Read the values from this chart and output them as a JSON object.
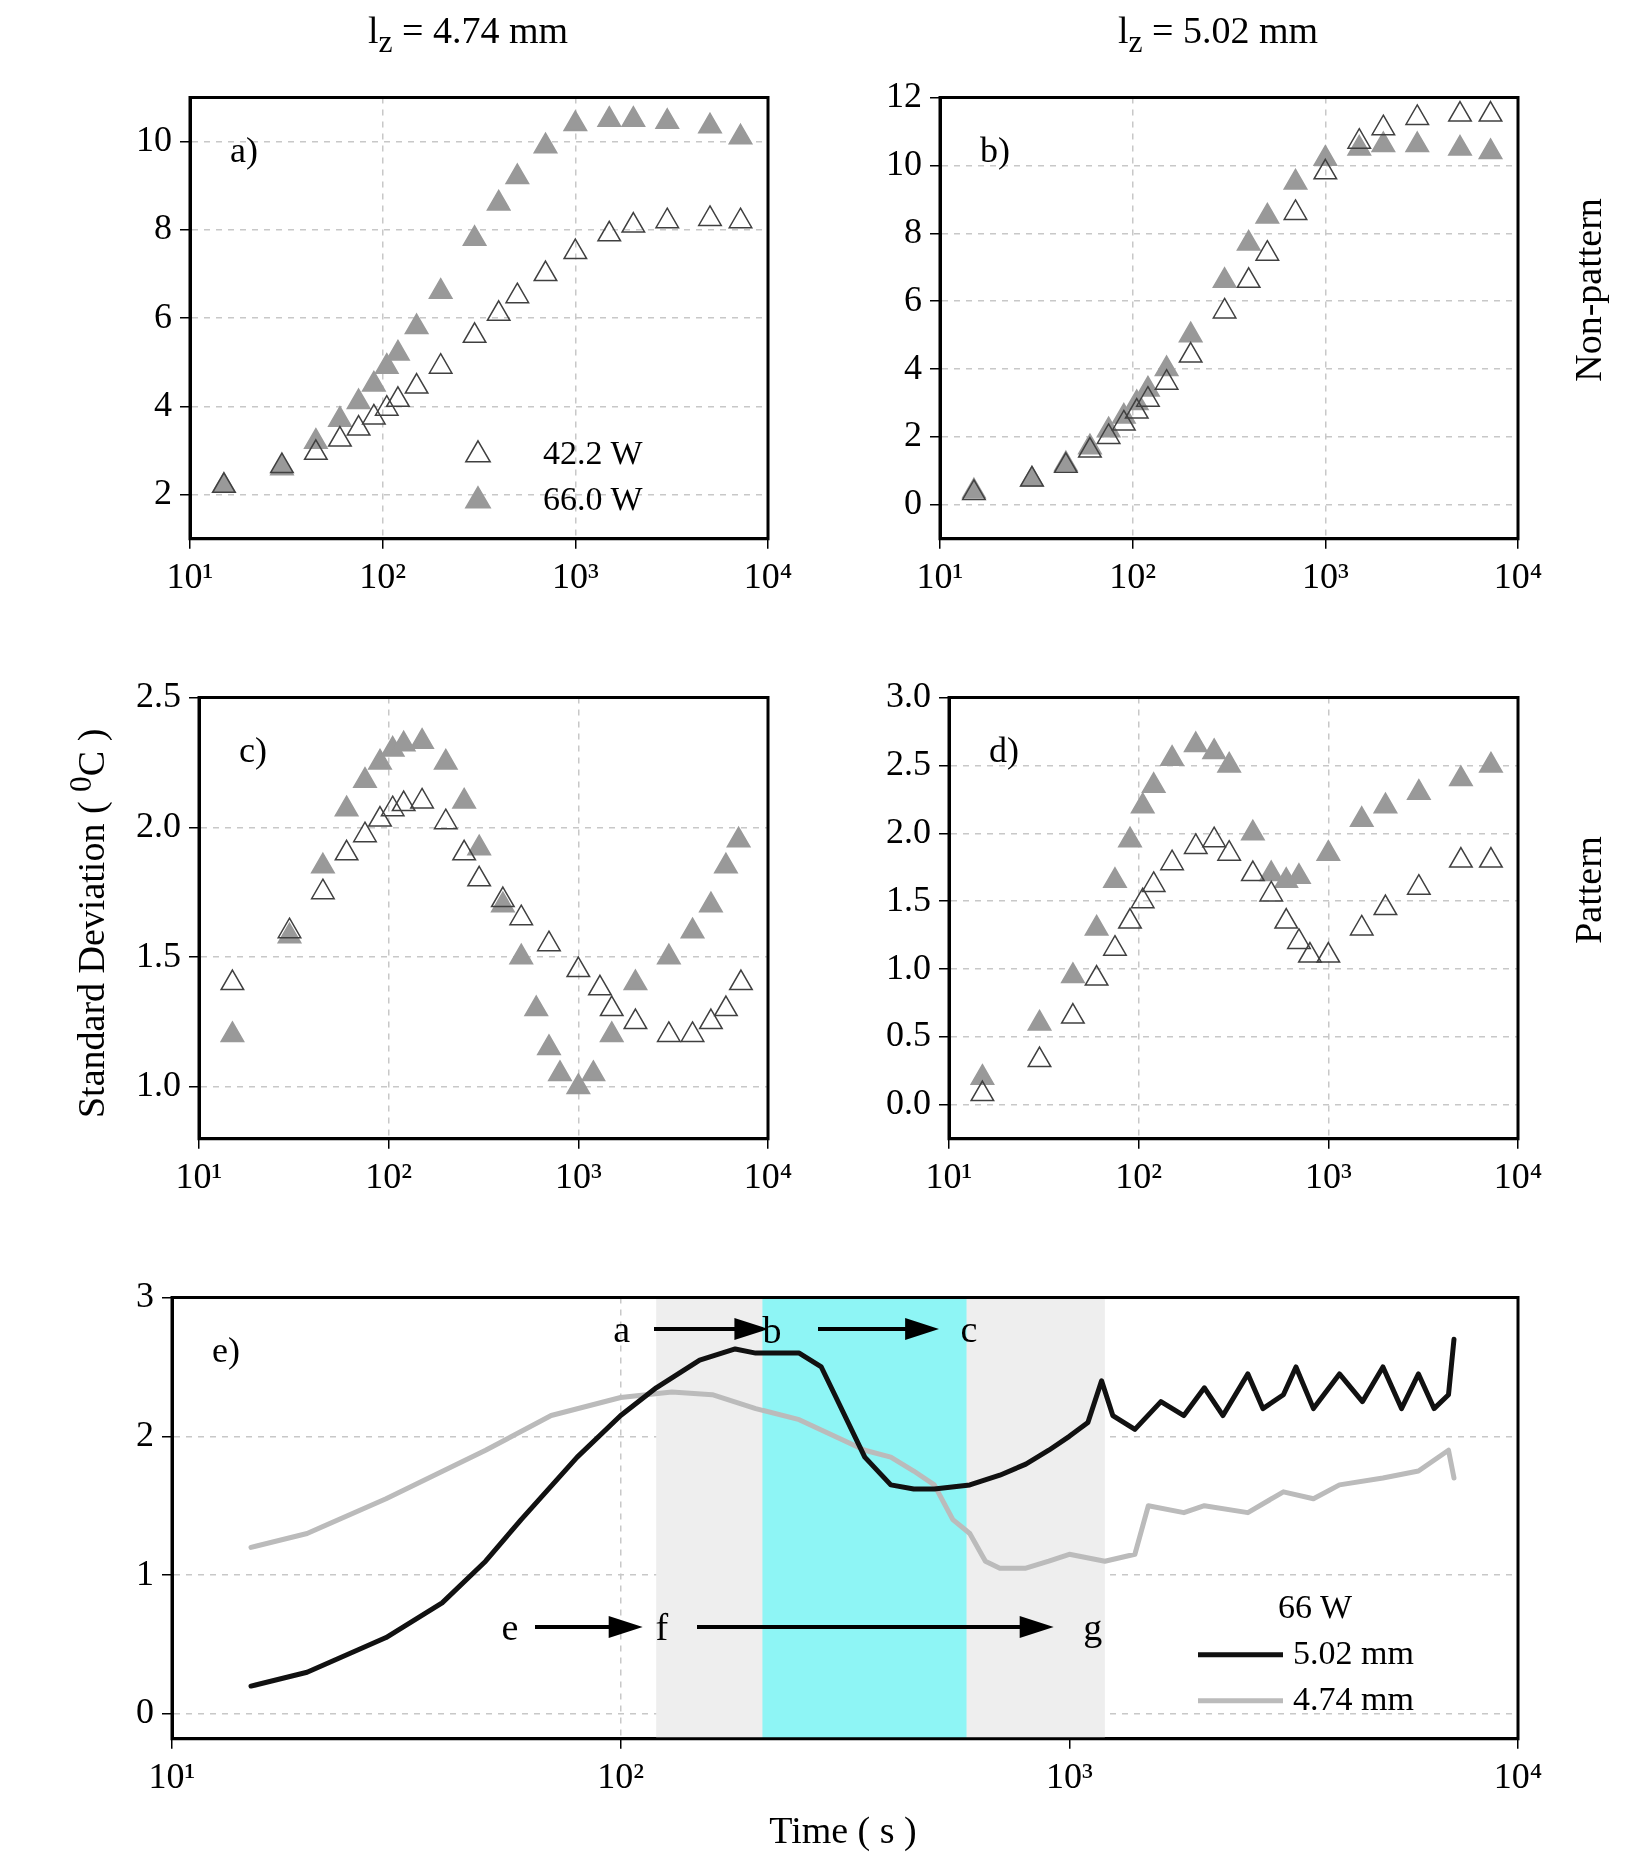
{
  "chart_data": [
    {
      "type": "scatter",
      "title": "l$_{z}$ = 4.74 mm",
      "log": "x",
      "grid": true,
      "marker": "triangle",
      "legend": "bottom right",
      "xlim": [
        10,
        10000
      ],
      "xticks": [
        {
          "value": 10,
          "label": "10¹"
        },
        {
          "value": 100,
          "label": "10²"
        },
        {
          "value": 1000,
          "label": "10³"
        },
        {
          "value": 10000,
          "label": "10⁴"
        }
      ],
      "ylim": [
        1,
        11
      ],
      "yticks": [
        2,
        4,
        6,
        8,
        10
      ],
      "annotations": [
        "a)"
      ],
      "series": [
        {
          "name": "42.2 W",
          "color": "#404040",
          "x": [
            15,
            30,
            45,
            60,
            75,
            90,
            105,
            120,
            150,
            200,
            300,
            400,
            500,
            700,
            1000,
            1500,
            2000,
            3000,
            5000,
            7200
          ],
          "values": [
            2.2,
            2.65,
            2.95,
            3.25,
            3.5,
            3.75,
            3.95,
            4.15,
            4.45,
            4.9,
            5.6,
            6.1,
            6.5,
            7.0,
            7.5,
            7.9,
            8.1,
            8.2,
            8.25,
            8.2
          ]
        },
        {
          "name": "66.0 W",
          "color": "#999999",
          "x": [
            15,
            30,
            45,
            60,
            75,
            90,
            105,
            120,
            150,
            200,
            300,
            400,
            500,
            700,
            1000,
            1500,
            2000,
            3000,
            5000,
            7200
          ],
          "values": [
            2.2,
            2.6,
            3.2,
            3.7,
            4.1,
            4.5,
            4.9,
            5.2,
            5.8,
            6.6,
            7.8,
            8.6,
            9.2,
            9.9,
            10.4,
            10.5,
            10.5,
            10.45,
            10.35,
            10.1
          ]
        }
      ]
    },
    {
      "type": "scatter",
      "title": "l$_{z}$ = 5.02 mm",
      "y2label": "Non-pattern",
      "log": "x",
      "grid": true,
      "marker": "triangle",
      "xlim": [
        10,
        10000
      ],
      "xticks": [
        {
          "value": 10,
          "label": "10¹"
        },
        {
          "value": 100,
          "label": "10²"
        },
        {
          "value": 1000,
          "label": "10³"
        },
        {
          "value": 10000,
          "label": "10⁴"
        }
      ],
      "ylim": [
        -1,
        12
      ],
      "yticks": [
        0,
        2,
        4,
        6,
        8,
        10,
        12
      ],
      "annotations": [
        "b)"
      ],
      "series": [
        {
          "color": "#404040",
          "x": [
            15,
            30,
            45,
            60,
            75,
            90,
            105,
            120,
            150,
            200,
            300,
            400,
            500,
            700,
            1000,
            1500,
            2000,
            3000,
            5000,
            7200
          ],
          "values": [
            0.35,
            0.75,
            1.15,
            1.6,
            2.0,
            2.4,
            2.75,
            3.1,
            3.6,
            4.4,
            5.7,
            6.6,
            7.4,
            8.6,
            9.8,
            10.7,
            11.1,
            11.4,
            11.5,
            11.5
          ]
        },
        {
          "color": "#999999",
          "x": [
            15,
            30,
            45,
            60,
            75,
            90,
            105,
            120,
            150,
            200,
            300,
            400,
            500,
            700,
            1000,
            1500,
            2000,
            3000,
            5000,
            7200
          ],
          "values": [
            0.4,
            0.75,
            1.2,
            1.7,
            2.2,
            2.6,
            3.0,
            3.4,
            4.0,
            5.0,
            6.6,
            7.7,
            8.5,
            9.5,
            10.2,
            10.5,
            10.6,
            10.6,
            10.5,
            10.4
          ]
        }
      ]
    },
    {
      "type": "scatter",
      "ylabel": "Standard Deviation ( $^{0}$C )",
      "log": "x",
      "grid": true,
      "marker": "triangle",
      "xlim": [
        10,
        10000
      ],
      "xticks": [
        {
          "value": 10,
          "label": "10¹"
        },
        {
          "value": 100,
          "label": "10²"
        },
        {
          "value": 1000,
          "label": "10³"
        },
        {
          "value": 10000,
          "label": "10⁴"
        }
      ],
      "ylim": [
        0.8,
        2.5
      ],
      "yticks": [
        {
          "value": 1,
          "label": "1.0"
        },
        1.5,
        {
          "value": 2,
          "label": "2.0"
        },
        2.5
      ],
      "annotations": [
        "c)"
      ],
      "series": [
        {
          "color": "#404040",
          "x": [
            15,
            30,
            45,
            60,
            75,
            90,
            105,
            120,
            150,
            200,
            250,
            300,
            400,
            500,
            700,
            1000,
            1300,
            1500,
            2000,
            3000,
            4000,
            5000,
            6000,
            7200
          ],
          "values": [
            1.4,
            1.6,
            1.75,
            1.9,
            1.97,
            2.03,
            2.07,
            2.09,
            2.1,
            2.02,
            1.9,
            1.8,
            1.72,
            1.65,
            1.55,
            1.45,
            1.38,
            1.3,
            1.25,
            1.2,
            1.2,
            1.25,
            1.3,
            1.4
          ]
        },
        {
          "color": "#999999",
          "x": [
            15,
            30,
            45,
            60,
            75,
            90,
            105,
            120,
            150,
            200,
            250,
            300,
            400,
            500,
            600,
            700,
            800,
            1000,
            1200,
            1500,
            2000,
            3000,
            4000,
            5000,
            6000,
            7000
          ],
          "values": [
            1.2,
            1.58,
            1.85,
            2.07,
            2.18,
            2.25,
            2.3,
            2.32,
            2.33,
            2.25,
            2.1,
            1.92,
            1.7,
            1.5,
            1.3,
            1.15,
            1.05,
            1.0,
            1.05,
            1.2,
            1.4,
            1.5,
            1.6,
            1.7,
            1.85,
            1.95
          ]
        }
      ]
    },
    {
      "type": "scatter",
      "y2label": "Pattern",
      "log": "x",
      "grid": true,
      "marker": "triangle",
      "xlim": [
        10,
        10000
      ],
      "xticks": [
        {
          "value": 10,
          "label": "10¹"
        },
        {
          "value": 100,
          "label": "10²"
        },
        {
          "value": 1000,
          "label": "10³"
        },
        {
          "value": 10000,
          "label": "10⁴"
        }
      ],
      "ylim": [
        -0.25,
        3
      ],
      "yticks": [
        {
          "value": 0,
          "label": "0.0"
        },
        0.5,
        {
          "value": 1,
          "label": "1.0"
        },
        1.5,
        {
          "value": 2,
          "label": "2.0"
        },
        2.5,
        {
          "value": 3,
          "label": "3.0"
        }
      ],
      "annotations": [
        "d)"
      ],
      "series": [
        {
          "color": "#404040",
          "x": [
            15,
            30,
            45,
            60,
            75,
            90,
            105,
            120,
            150,
            200,
            250,
            300,
            400,
            500,
            600,
            700,
            800,
            1000,
            1500,
            2000,
            3000,
            5000,
            7200
          ],
          "values": [
            0.08,
            0.33,
            0.65,
            0.93,
            1.15,
            1.35,
            1.5,
            1.62,
            1.78,
            1.9,
            1.95,
            1.85,
            1.7,
            1.55,
            1.35,
            1.2,
            1.1,
            1.1,
            1.3,
            1.45,
            1.6,
            1.8,
            1.8
          ]
        },
        {
          "color": "#999999",
          "x": [
            15,
            30,
            45,
            60,
            75,
            90,
            105,
            120,
            150,
            200,
            250,
            300,
            400,
            500,
            600,
            700,
            1000,
            1500,
            2000,
            3000,
            5000,
            7200
          ],
          "values": [
            0.2,
            0.6,
            0.95,
            1.3,
            1.65,
            1.95,
            2.2,
            2.35,
            2.55,
            2.65,
            2.6,
            2.5,
            2.0,
            1.7,
            1.65,
            1.68,
            1.85,
            2.1,
            2.2,
            2.3,
            2.4,
            2.5
          ]
        }
      ]
    },
    {
      "type": "line",
      "xlabel": "Time ( s )",
      "log": "x",
      "grid": true,
      "legend": "bottom right",
      "legend_title": "66 W",
      "xlim": [
        10,
        10000
      ],
      "xticks": [
        {
          "value": 10,
          "label": "10¹"
        },
        {
          "value": 100,
          "label": "10²"
        },
        {
          "value": 1000,
          "label": "10³"
        },
        {
          "value": 10000,
          "label": "10⁴"
        }
      ],
      "ylim": [
        -0.18,
        3
      ],
      "yticks": [
        0,
        1,
        2,
        3
      ],
      "bands": [
        {
          "axis": "x",
          "from": 120,
          "to": 1200,
          "color": "#eeeeee"
        },
        {
          "axis": "x",
          "from": 207,
          "to": 590,
          "color": "#8ef5f5"
        }
      ],
      "annotations": [
        "e)",
        "a",
        {
          "text": "b",
          "x": 207,
          "y": 2.77
        },
        "c",
        "e",
        "f",
        "g"
      ],
      "series": [
        {
          "name": "5.02 mm",
          "color": "#111111",
          "x": [
            15,
            20,
            30,
            40,
            50,
            60,
            80,
            100,
            120,
            150,
            180,
            200,
            230,
            250,
            280,
            300,
            350,
            400,
            450,
            500,
            600,
            700,
            800,
            900,
            1000,
            1100,
            1180,
            1250,
            1400,
            1600,
            1800,
            2000,
            2200,
            2500,
            2700,
            3000,
            3200,
            3500,
            4000,
            4500,
            5000,
            5500,
            6000,
            6500,
            7000,
            7200
          ],
          "values": [
            0.2,
            0.3,
            0.55,
            0.8,
            1.1,
            1.4,
            1.85,
            2.15,
            2.35,
            2.55,
            2.63,
            2.6,
            2.6,
            2.6,
            2.5,
            2.3,
            1.85,
            1.65,
            1.62,
            1.62,
            1.65,
            1.72,
            1.8,
            1.9,
            2.0,
            2.1,
            2.4,
            2.15,
            2.05,
            2.25,
            2.15,
            2.35,
            2.15,
            2.45,
            2.2,
            2.3,
            2.5,
            2.2,
            2.45,
            2.25,
            2.5,
            2.2,
            2.45,
            2.2,
            2.3,
            2.7
          ]
        },
        {
          "name": "4.74 mm",
          "color": "#bbbbbb",
          "x": [
            15,
            20,
            30,
            50,
            70,
            100,
            130,
            160,
            200,
            250,
            300,
            350,
            400,
            450,
            500,
            550,
            600,
            650,
            700,
            800,
            900,
            1000,
            1200,
            1400,
            1500,
            1800,
            2000,
            2500,
            3000,
            3500,
            4000,
            5000,
            6000,
            7000,
            7200
          ],
          "values": [
            1.2,
            1.3,
            1.55,
            1.9,
            2.15,
            2.28,
            2.32,
            2.3,
            2.2,
            2.12,
            2.0,
            1.9,
            1.85,
            1.75,
            1.65,
            1.4,
            1.3,
            1.1,
            1.05,
            1.05,
            1.1,
            1.15,
            1.1,
            1.15,
            1.5,
            1.45,
            1.5,
            1.45,
            1.6,
            1.55,
            1.65,
            1.7,
            1.75,
            1.9,
            1.7
          ]
        }
      ]
    }
  ]
}
